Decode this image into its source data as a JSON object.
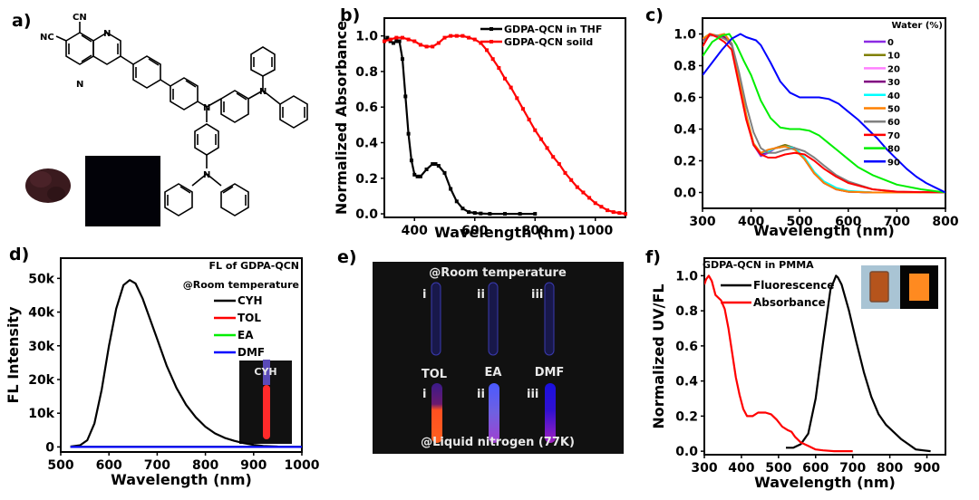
{
  "panel_labels": {
    "a": "a)",
    "b": "b)",
    "c": "c)",
    "d": "d)",
    "e": "e)",
    "f": "f)"
  },
  "panel_a": {
    "type": "chemical-structure",
    "substituent_labels": {
      "cn_top": "CN",
      "nc_left": "NC"
    },
    "atom_labels": [
      "N",
      "N",
      "N",
      "N",
      "N"
    ],
    "photos": [
      "powder-under-daylight",
      "powder-under-uv"
    ]
  },
  "panel_e": {
    "top_caption": "@Room temperature",
    "bottom_caption": "@Liquid nitrogen (77K)",
    "tube_labels": [
      "i",
      "ii",
      "iii"
    ],
    "solvent_labels": [
      "TOL",
      "EA",
      "DMF"
    ],
    "rt_tube_color": "#2a2a8a",
    "ln_tube_colors": [
      [
        "#3b1a8a",
        "#ff5020"
      ],
      [
        "#4a5aff",
        "#a040d0"
      ],
      [
        "#1a10e0",
        "#a020c0"
      ]
    ]
  },
  "chart_data": [
    {
      "id": "b",
      "type": "line",
      "title": "",
      "xlabel": "Wavelength (nm)",
      "ylabel": "Normalized Absorbance",
      "xlim": [
        300,
        1100
      ],
      "ylim": [
        -0.02,
        1.1
      ],
      "xticks": [
        400,
        600,
        800,
        1000
      ],
      "yticks": [
        "0.0",
        "0.2",
        "0.4",
        "0.6",
        "0.8",
        "1.0"
      ],
      "ytick_values": [
        0,
        0.2,
        0.4,
        0.6,
        0.8,
        1.0
      ],
      "legend_position": "top-right",
      "series": [
        {
          "name": "GDPA-QCN in THF",
          "color": "#000000",
          "marker": "square",
          "x": [
            300,
            310,
            320,
            330,
            340,
            350,
            360,
            370,
            380,
            390,
            400,
            410,
            420,
            440,
            460,
            470,
            480,
            500,
            520,
            540,
            560,
            580,
            600,
            620,
            650,
            700,
            750,
            800
          ],
          "y": [
            0.97,
            0.99,
            0.97,
            0.96,
            0.97,
            0.97,
            0.87,
            0.66,
            0.45,
            0.3,
            0.22,
            0.21,
            0.21,
            0.25,
            0.28,
            0.28,
            0.27,
            0.23,
            0.14,
            0.07,
            0.03,
            0.01,
            0.005,
            0.002,
            0.0,
            0.0,
            0.0,
            0.0
          ]
        },
        {
          "name": "GDPA-QCN soild",
          "color": "#ff0000",
          "marker": "square",
          "x": [
            300,
            320,
            340,
            360,
            380,
            400,
            420,
            440,
            460,
            480,
            500,
            520,
            540,
            560,
            580,
            600,
            620,
            640,
            660,
            680,
            700,
            720,
            740,
            760,
            780,
            800,
            820,
            840,
            860,
            880,
            900,
            920,
            940,
            960,
            980,
            1000,
            1020,
            1040,
            1060,
            1080,
            1100
          ],
          "y": [
            0.97,
            0.98,
            0.99,
            0.99,
            0.98,
            0.97,
            0.95,
            0.94,
            0.94,
            0.96,
            0.99,
            1.0,
            1.0,
            1.0,
            0.99,
            0.98,
            0.96,
            0.92,
            0.87,
            0.82,
            0.76,
            0.71,
            0.65,
            0.59,
            0.53,
            0.47,
            0.42,
            0.37,
            0.32,
            0.28,
            0.23,
            0.19,
            0.15,
            0.12,
            0.09,
            0.06,
            0.04,
            0.02,
            0.01,
            0.005,
            0.0
          ]
        }
      ]
    },
    {
      "id": "c",
      "type": "line",
      "title": "",
      "xlabel": "Wavelength (nm)",
      "ylabel": "",
      "xlim": [
        300,
        800
      ],
      "ylim": [
        -0.1,
        1.1
      ],
      "xticks": [
        300,
        400,
        500,
        600,
        700,
        800
      ],
      "yticks": [
        "0.0",
        "0.2",
        "0.4",
        "0.6",
        "0.8",
        "1.0"
      ],
      "ytick_values": [
        0,
        0.2,
        0.4,
        0.6,
        0.8,
        1.0
      ],
      "legend_title": "Water (%)",
      "legend_position": "top-right",
      "series": [
        {
          "name": "0",
          "color": "#8b2be2",
          "x": [
            300,
            315,
            330,
            345,
            360,
            375,
            390,
            405,
            420,
            435,
            450,
            470,
            490,
            510,
            530,
            550,
            575,
            600,
            650,
            700,
            800
          ],
          "y": [
            0.95,
            1.0,
            0.99,
            0.98,
            0.93,
            0.72,
            0.48,
            0.3,
            0.23,
            0.25,
            0.28,
            0.3,
            0.28,
            0.21,
            0.12,
            0.06,
            0.02,
            0.005,
            0.0,
            0.0,
            0.0
          ]
        },
        {
          "name": "10",
          "color": "#808000",
          "x": [
            300,
            315,
            330,
            345,
            360,
            375,
            390,
            405,
            420,
            435,
            450,
            470,
            490,
            510,
            530,
            550,
            575,
            600,
            650,
            700,
            800
          ],
          "y": [
            0.96,
            1.0,
            0.99,
            0.98,
            0.93,
            0.72,
            0.48,
            0.3,
            0.24,
            0.26,
            0.28,
            0.3,
            0.28,
            0.21,
            0.12,
            0.06,
            0.02,
            0.005,
            0.0,
            0.0,
            0.0
          ]
        },
        {
          "name": "20",
          "color": "#ff80ff",
          "x": [
            300,
            315,
            330,
            345,
            360,
            375,
            390,
            405,
            420,
            435,
            450,
            470,
            490,
            510,
            530,
            550,
            575,
            600,
            650,
            700,
            800
          ],
          "y": [
            0.96,
            1.0,
            0.99,
            0.98,
            0.93,
            0.72,
            0.48,
            0.3,
            0.24,
            0.26,
            0.28,
            0.29,
            0.28,
            0.21,
            0.12,
            0.06,
            0.02,
            0.005,
            0.0,
            0.0,
            0.0
          ]
        },
        {
          "name": "30",
          "color": "#800080",
          "x": [
            300,
            315,
            330,
            345,
            360,
            375,
            390,
            405,
            420,
            435,
            450,
            470,
            490,
            510,
            530,
            550,
            575,
            600,
            650,
            700,
            800
          ],
          "y": [
            0.96,
            1.0,
            0.99,
            0.98,
            0.93,
            0.72,
            0.48,
            0.3,
            0.24,
            0.26,
            0.28,
            0.29,
            0.28,
            0.21,
            0.12,
            0.06,
            0.02,
            0.005,
            0.0,
            0.0,
            0.0
          ]
        },
        {
          "name": "40",
          "color": "#00ffff",
          "x": [
            300,
            315,
            330,
            345,
            360,
            375,
            390,
            405,
            420,
            435,
            450,
            470,
            490,
            510,
            530,
            550,
            575,
            600,
            650,
            700,
            800
          ],
          "y": [
            0.97,
            1.0,
            0.99,
            1.0,
            0.94,
            0.73,
            0.49,
            0.31,
            0.25,
            0.26,
            0.28,
            0.29,
            0.28,
            0.22,
            0.13,
            0.07,
            0.03,
            0.01,
            0.0,
            0.0,
            0.0
          ]
        },
        {
          "name": "50",
          "color": "#ff8000",
          "x": [
            300,
            315,
            330,
            345,
            360,
            375,
            390,
            405,
            420,
            435,
            450,
            470,
            490,
            510,
            530,
            550,
            575,
            600,
            650,
            700,
            800
          ],
          "y": [
            0.97,
            1.0,
            0.99,
            1.0,
            0.94,
            0.73,
            0.49,
            0.31,
            0.25,
            0.27,
            0.28,
            0.29,
            0.27,
            0.21,
            0.12,
            0.06,
            0.02,
            0.005,
            0.0,
            0.0,
            0.0
          ]
        },
        {
          "name": "60",
          "color": "#808080",
          "x": [
            300,
            315,
            330,
            345,
            360,
            375,
            390,
            405,
            420,
            435,
            450,
            470,
            490,
            510,
            530,
            550,
            575,
            600,
            650,
            700,
            800
          ],
          "y": [
            0.95,
            0.99,
            0.99,
            0.97,
            0.94,
            0.76,
            0.55,
            0.38,
            0.28,
            0.25,
            0.25,
            0.27,
            0.28,
            0.26,
            0.22,
            0.17,
            0.11,
            0.07,
            0.02,
            0.005,
            0.0
          ]
        },
        {
          "name": "70",
          "color": "#ff0000",
          "x": [
            300,
            315,
            330,
            345,
            360,
            375,
            390,
            405,
            420,
            435,
            450,
            470,
            490,
            510,
            530,
            550,
            575,
            600,
            650,
            700,
            800
          ],
          "y": [
            0.92,
            1.0,
            0.98,
            0.95,
            0.9,
            0.68,
            0.46,
            0.3,
            0.24,
            0.22,
            0.22,
            0.24,
            0.25,
            0.24,
            0.2,
            0.15,
            0.1,
            0.06,
            0.02,
            0.005,
            0.0
          ]
        },
        {
          "name": "80",
          "color": "#00ee00",
          "x": [
            300,
            320,
            340,
            355,
            370,
            385,
            400,
            420,
            440,
            460,
            480,
            500,
            520,
            540,
            560,
            580,
            600,
            620,
            650,
            700,
            750,
            800
          ],
          "y": [
            0.86,
            0.95,
            0.99,
            1.0,
            0.93,
            0.83,
            0.74,
            0.58,
            0.47,
            0.41,
            0.4,
            0.4,
            0.39,
            0.36,
            0.31,
            0.26,
            0.21,
            0.16,
            0.11,
            0.05,
            0.02,
            0.0
          ]
        },
        {
          "name": "90",
          "color": "#0000ff",
          "x": [
            300,
            320,
            340,
            360,
            378,
            390,
            410,
            420,
            440,
            460,
            480,
            500,
            520,
            540,
            560,
            580,
            600,
            620,
            640,
            660,
            680,
            700,
            720,
            740,
            760,
            780,
            800
          ],
          "y": [
            0.74,
            0.82,
            0.9,
            0.97,
            1.0,
            0.98,
            0.96,
            0.93,
            0.82,
            0.7,
            0.63,
            0.6,
            0.6,
            0.6,
            0.59,
            0.56,
            0.51,
            0.46,
            0.4,
            0.34,
            0.27,
            0.21,
            0.15,
            0.1,
            0.06,
            0.03,
            0.0
          ]
        }
      ]
    },
    {
      "id": "d",
      "type": "line",
      "title": "",
      "xlabel": "Wavelength (nm)",
      "ylabel": "FL Intensity",
      "xlim": [
        500,
        1000
      ],
      "ylim": [
        -1500,
        56000
      ],
      "xticks": [
        500,
        600,
        700,
        800,
        900,
        1000
      ],
      "yticks": [
        "0",
        "10k",
        "20k",
        "30k",
        "40k",
        "50k"
      ],
      "ytick_values": [
        0,
        10000,
        20000,
        30000,
        40000,
        50000
      ],
      "legend_title": [
        "FL of GDPA-QCN",
        "@Room temperature"
      ],
      "legend_position": "top-right",
      "inset_label": "CYH",
      "series": [
        {
          "name": "CYH",
          "color": "#000000",
          "x": [
            520,
            540,
            555,
            570,
            585,
            600,
            615,
            630,
            643,
            655,
            670,
            685,
            700,
            720,
            740,
            760,
            780,
            800,
            820,
            840,
            860,
            880,
            900,
            920,
            950
          ],
          "y": [
            100,
            500,
            2000,
            7000,
            17000,
            30000,
            41000,
            48000,
            49500,
            48500,
            44000,
            38000,
            32000,
            24000,
            17500,
            12500,
            8800,
            6000,
            4000,
            2700,
            1800,
            1100,
            600,
            300,
            100
          ]
        },
        {
          "name": "TOL",
          "color": "#ff0000",
          "x": [
            520,
            1000
          ],
          "y": [
            0,
            0
          ]
        },
        {
          "name": "EA",
          "color": "#00ee00",
          "x": [
            520,
            1000
          ],
          "y": [
            0,
            0
          ]
        },
        {
          "name": "DMF",
          "color": "#0000ff",
          "x": [
            520,
            1000
          ],
          "y": [
            0,
            0
          ]
        }
      ]
    },
    {
      "id": "f",
      "type": "line",
      "title": "",
      "xlabel": "Wavelength (nm)",
      "ylabel": "Normalized UV/FL",
      "xlim": [
        300,
        950
      ],
      "ylim": [
        -0.02,
        1.1
      ],
      "xticks": [
        300,
        400,
        500,
        600,
        700,
        800,
        900
      ],
      "yticks": [
        "0.0",
        "0.2",
        "0.4",
        "0.6",
        "0.8",
        "1.0"
      ],
      "ytick_values": [
        0,
        0.2,
        0.4,
        0.6,
        0.8,
        1.0
      ],
      "legend_title": "GDPA-QCN in PMMA",
      "legend_position": "top-left",
      "series": [
        {
          "name": "Fluorescence",
          "color": "#000000",
          "x": [
            520,
            540,
            560,
            580,
            600,
            620,
            640,
            655,
            660,
            670,
            690,
            710,
            730,
            750,
            770,
            790,
            810,
            830,
            850,
            870,
            890,
            910
          ],
          "y": [
            0.02,
            0.02,
            0.04,
            0.1,
            0.3,
            0.62,
            0.92,
            1.0,
            0.99,
            0.95,
            0.8,
            0.62,
            0.45,
            0.31,
            0.21,
            0.15,
            0.11,
            0.07,
            0.04,
            0.01,
            0.005,
            0.0
          ]
        },
        {
          "name": "Absorbance",
          "color": "#ff0000",
          "x": [
            300,
            305,
            312,
            320,
            330,
            345,
            355,
            365,
            375,
            385,
            395,
            405,
            415,
            430,
            445,
            465,
            480,
            495,
            510,
            525,
            535,
            545,
            560,
            580,
            600,
            620,
            650,
            700
          ],
          "y": [
            0.95,
            0.98,
            1.0,
            0.97,
            0.89,
            0.86,
            0.81,
            0.7,
            0.56,
            0.42,
            0.32,
            0.24,
            0.2,
            0.2,
            0.22,
            0.22,
            0.21,
            0.18,
            0.14,
            0.12,
            0.11,
            0.08,
            0.05,
            0.03,
            0.01,
            0.005,
            0.0,
            0.0
          ]
        }
      ]
    }
  ]
}
